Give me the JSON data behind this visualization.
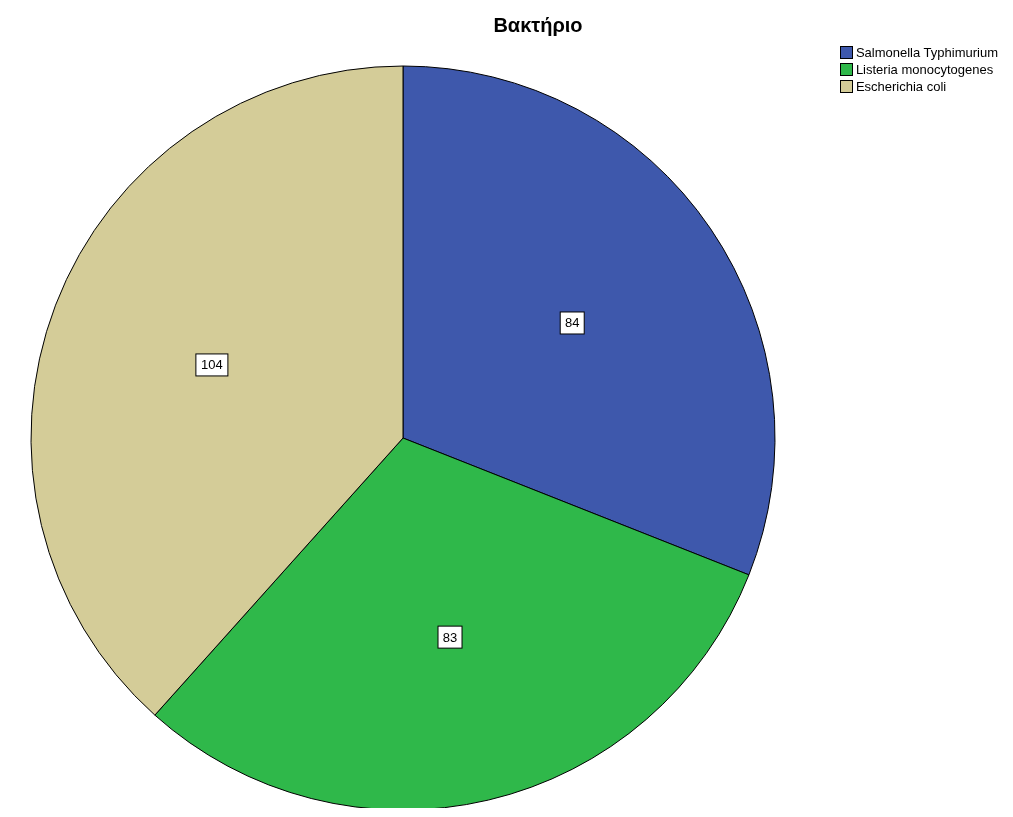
{
  "chart_data": {
    "type": "pie",
    "title": "Βακτήριο",
    "categories": [
      "Salmonella Typhimurium",
      "Listeria monocytogenes",
      "Escherichia coli"
    ],
    "values": [
      84,
      83,
      104
    ],
    "colors": [
      "#3e58ac",
      "#2fb84a",
      "#d4cc98"
    ],
    "data_labels": true,
    "legend": "top right"
  }
}
